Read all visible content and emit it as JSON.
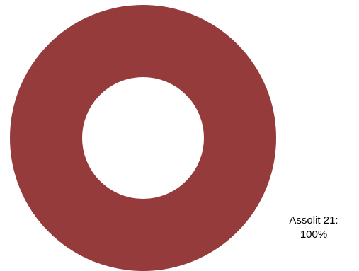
{
  "chart_data": {
    "type": "pie",
    "donut": true,
    "categories": [
      "Assolit 21"
    ],
    "values": [
      100
    ],
    "slice_colors": [
      "#953b3b"
    ],
    "data_labels": [
      {
        "name": "Assolit 21:",
        "value": "100%"
      }
    ],
    "title": "",
    "legend": "none"
  }
}
